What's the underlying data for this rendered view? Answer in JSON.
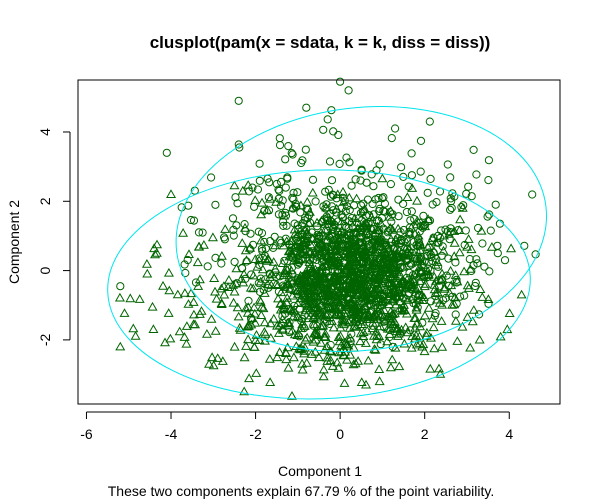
{
  "chart_data": {
    "type": "scatter",
    "title": "clusplot(pam(x = sdata, k = k, diss = diss))",
    "xlabel": "Component 1",
    "ylabel": "Component 2",
    "subtitle": "These two components explain 67.79 % of the point variability.",
    "xlim": [
      -6.2,
      5.2
    ],
    "ylim": [
      -3.85,
      5.5
    ],
    "x_ticks": [
      -6,
      -4,
      -2,
      0,
      2,
      4
    ],
    "y_ticks": [
      -2,
      0,
      2,
      4
    ],
    "grid": false,
    "colors": {
      "points": "#006400",
      "ellipse": "#00e5ee",
      "axis": "#000000"
    },
    "series": [
      {
        "marker": "circle",
        "approx_count": 900,
        "center": [
          0.5,
          0.2
        ],
        "ellipse": {
          "center": [
            0.5,
            1.2
          ],
          "semi_axes": [
            4.4,
            3.5
          ],
          "rotation_deg": 7
        },
        "notable_points": [
          [
            0.0,
            5.45
          ],
          [
            0.2,
            5.2
          ],
          [
            -2.4,
            4.9
          ],
          [
            -4.1,
            3.4
          ],
          [
            3.9,
            0.3
          ],
          [
            -5.2,
            -0.45
          ],
          [
            -0.8,
            4.7
          ],
          [
            1.3,
            4.1
          ]
        ]
      },
      {
        "marker": "triangle",
        "approx_count": 1100,
        "center": [
          0.3,
          -0.5
        ],
        "ellipse": {
          "center": [
            -0.5,
            -0.4
          ],
          "semi_axes": [
            5.0,
            3.3
          ],
          "rotation_deg": 2
        },
        "notable_points": [
          [
            -5.2,
            -2.2
          ],
          [
            -2.5,
            2.45
          ],
          [
            3.3,
            -2.0
          ],
          [
            1.2,
            -2.8
          ],
          [
            -3.1,
            -2.7
          ],
          [
            2.9,
            1.8
          ],
          [
            -4.0,
            2.2
          ]
        ]
      }
    ]
  }
}
